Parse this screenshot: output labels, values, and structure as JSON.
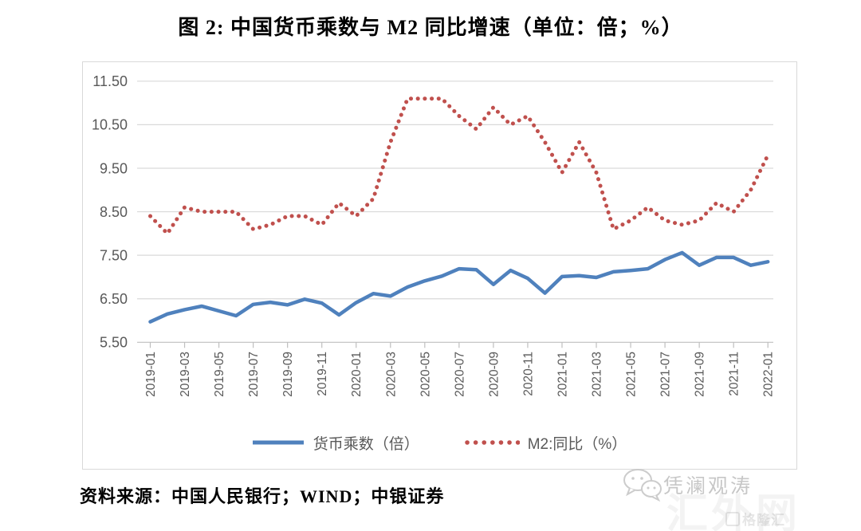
{
  "title": "图 2: 中国货币乘数与 M2 同比增速（单位：倍；%）",
  "source": "资料来源：中国人民银行；WIND；中银证券",
  "watermark": {
    "primary": "凭澜观涛",
    "icon": "wechat-bubbles-icon",
    "ghost_large": "汇外网",
    "ghost_small": "格隆汇"
  },
  "colors": {
    "multiplier_line": "#4F81BD",
    "m2_line": "#C0504D",
    "gridline": "#d9d9d9",
    "axis_line": "#bfbfbf",
    "tick_text": "#595959"
  },
  "chart_data": {
    "type": "line",
    "title": "图 2: 中国货币乘数与 M2 同比增速（单位：倍；%）",
    "xlabel": "",
    "ylabel": "",
    "ylim": [
      5.5,
      11.5
    ],
    "grid": true,
    "legend_position": "bottom",
    "y_ticks": [
      {
        "value": 5.5,
        "label": "5.50"
      },
      {
        "value": 6.5,
        "label": "6.50"
      },
      {
        "value": 7.5,
        "label": "7.50"
      },
      {
        "value": 8.5,
        "label": "8.50"
      },
      {
        "value": 9.5,
        "label": "9.50"
      },
      {
        "value": 10.5,
        "label": "10.50"
      },
      {
        "value": 11.5,
        "label": "11.50"
      }
    ],
    "x": [
      "2019-01",
      "2019-02",
      "2019-03",
      "2019-04",
      "2019-05",
      "2019-06",
      "2019-07",
      "2019-08",
      "2019-09",
      "2019-10",
      "2019-11",
      "2019-12",
      "2020-01",
      "2020-02",
      "2020-03",
      "2020-04",
      "2020-05",
      "2020-06",
      "2020-07",
      "2020-08",
      "2020-09",
      "2020-10",
      "2020-11",
      "2020-12",
      "2021-01",
      "2021-02",
      "2021-03",
      "2021-04",
      "2021-05",
      "2021-06",
      "2021-07",
      "2021-08",
      "2021-09",
      "2021-10",
      "2021-11",
      "2021-12",
      "2022-01"
    ],
    "x_tick_labels": [
      "2019-01",
      "2019-03",
      "2019-05",
      "2019-07",
      "2019-09",
      "2019-11",
      "2020-01",
      "2020-03",
      "2020-05",
      "2020-07",
      "2020-09",
      "2020-11",
      "2021-01",
      "2021-03",
      "2021-05",
      "2021-07",
      "2021-09",
      "2021-11",
      "2022-01"
    ],
    "series": [
      {
        "name": "货币乘数（倍）",
        "style": "solid",
        "color": "#4F81BD",
        "values": [
          5.97,
          6.15,
          6.25,
          6.33,
          6.22,
          6.11,
          6.37,
          6.42,
          6.36,
          6.49,
          6.4,
          6.13,
          6.41,
          6.62,
          6.56,
          6.77,
          6.91,
          7.02,
          7.19,
          7.17,
          6.83,
          7.15,
          6.97,
          6.63,
          7.01,
          7.03,
          6.99,
          7.12,
          7.15,
          7.19,
          7.4,
          7.56,
          7.27,
          7.45,
          7.45,
          7.27,
          7.35
        ]
      },
      {
        "name": "M2:同比（%）",
        "style": "dotted",
        "color": "#C0504D",
        "values": [
          8.4,
          8.0,
          8.6,
          8.5,
          8.5,
          8.5,
          8.1,
          8.2,
          8.4,
          8.4,
          8.2,
          8.7,
          8.4,
          8.8,
          10.1,
          11.1,
          11.1,
          11.1,
          10.7,
          10.4,
          10.9,
          10.5,
          10.7,
          10.1,
          9.4,
          10.1,
          9.4,
          8.1,
          8.3,
          8.6,
          8.3,
          8.2,
          8.3,
          8.7,
          8.5,
          9.0,
          9.8
        ]
      }
    ]
  }
}
